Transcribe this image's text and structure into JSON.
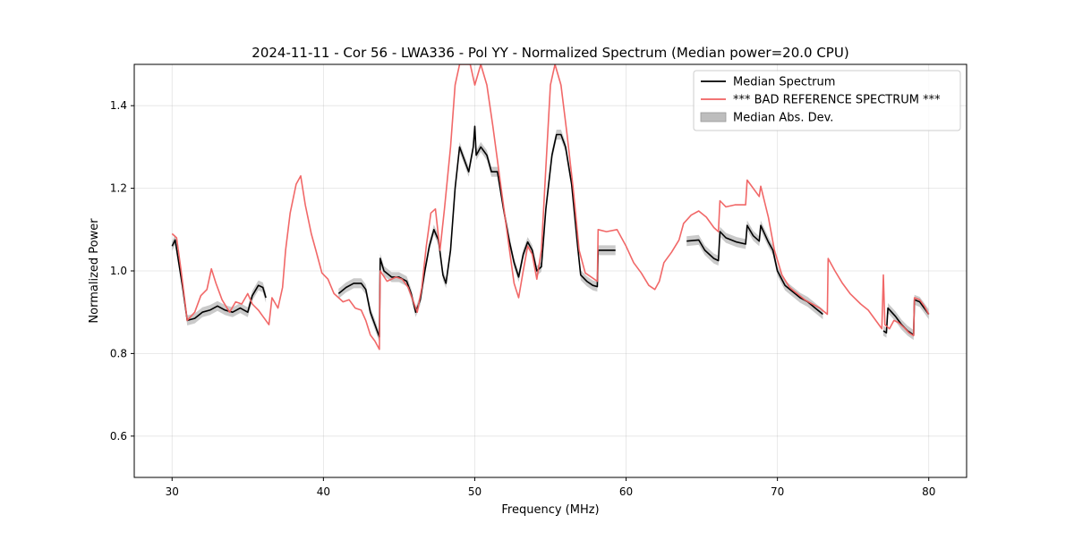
{
  "chart_data": {
    "type": "line",
    "title": "2024-11-11 - Cor 56 - LWA336 - Pol YY - Normalized Spectrum (Median power=20.0 CPU)",
    "xlabel": "Frequency (MHz)",
    "ylabel": "Normalized Power",
    "xlim": [
      27.5,
      82.5
    ],
    "ylim": [
      0.5,
      1.5
    ],
    "xticks": [
      30,
      40,
      50,
      60,
      70,
      80
    ],
    "yticks": [
      0.6,
      0.8,
      1.0,
      1.2,
      1.4
    ],
    "xtick_labels": [
      "30",
      "40",
      "50",
      "60",
      "70",
      "80"
    ],
    "ytick_labels": [
      "0.6",
      "0.8",
      "1.0",
      "1.2",
      "1.4"
    ],
    "grid": true,
    "legend_position": "top-right",
    "colors": {
      "median": "#000000",
      "reference": "#f06060",
      "band": "#bdbdbd"
    },
    "legend": [
      {
        "label": "Median Spectrum",
        "kind": "line",
        "color": "#000000"
      },
      {
        "label": "*** BAD REFERENCE SPECTRUM ***",
        "kind": "line",
        "color": "#f06060"
      },
      {
        "label": "Median Abs. Dev.",
        "kind": "patch",
        "color": "#bdbdbd"
      }
    ],
    "series": [
      {
        "name": "Median Spectrum",
        "band_halfwidth": 0.012,
        "segments": [
          [
            [
              30.0,
              1.06
            ],
            [
              30.2,
              1.075
            ],
            [
              30.4,
              1.03
            ],
            [
              30.7,
              0.96
            ],
            [
              31.0,
              0.88
            ],
            [
              31.5,
              0.885
            ],
            [
              32.0,
              0.9
            ],
            [
              32.5,
              0.905
            ],
            [
              33.0,
              0.915
            ],
            [
              33.5,
              0.905
            ],
            [
              34.0,
              0.9
            ],
            [
              34.5,
              0.91
            ],
            [
              35.0,
              0.9
            ],
            [
              35.3,
              0.94
            ],
            [
              35.7,
              0.965
            ],
            [
              36.0,
              0.96
            ],
            [
              36.2,
              0.935
            ]
          ],
          [
            [
              41.0,
              0.945
            ],
            [
              41.5,
              0.96
            ],
            [
              42.0,
              0.97
            ],
            [
              42.5,
              0.97
            ],
            [
              42.8,
              0.955
            ],
            [
              43.1,
              0.9
            ],
            [
              43.4,
              0.87
            ],
            [
              43.7,
              0.84
            ],
            [
              43.75,
              1.03
            ],
            [
              44.0,
              1.0
            ],
            [
              44.5,
              0.985
            ],
            [
              45.0,
              0.985
            ],
            [
              45.5,
              0.975
            ],
            [
              45.8,
              0.945
            ],
            [
              46.1,
              0.9
            ],
            [
              46.4,
              0.93
            ],
            [
              46.7,
              1.0
            ],
            [
              47.0,
              1.06
            ],
            [
              47.3,
              1.1
            ],
            [
              47.6,
              1.075
            ],
            [
              47.9,
              0.99
            ],
            [
              48.1,
              0.97
            ],
            [
              48.4,
              1.05
            ],
            [
              48.7,
              1.2
            ],
            [
              49.0,
              1.3
            ],
            [
              49.3,
              1.27
            ],
            [
              49.6,
              1.24
            ],
            [
              49.9,
              1.3
            ],
            [
              50.0,
              1.35
            ],
            [
              50.1,
              1.28
            ],
            [
              50.4,
              1.3
            ],
            [
              50.8,
              1.28
            ],
            [
              51.1,
              1.24
            ],
            [
              51.5,
              1.24
            ],
            [
              51.9,
              1.15
            ],
            [
              52.3,
              1.07
            ],
            [
              52.6,
              1.02
            ],
            [
              52.9,
              0.985
            ],
            [
              53.2,
              1.04
            ],
            [
              53.5,
              1.07
            ],
            [
              53.8,
              1.05
            ],
            [
              54.1,
              1.0
            ],
            [
              54.4,
              1.01
            ],
            [
              54.7,
              1.15
            ],
            [
              55.1,
              1.28
            ],
            [
              55.4,
              1.33
            ],
            [
              55.7,
              1.33
            ],
            [
              56.0,
              1.3
            ],
            [
              56.4,
              1.21
            ],
            [
              56.8,
              1.06
            ],
            [
              57.0,
              0.99
            ],
            [
              57.4,
              0.975
            ],
            [
              57.8,
              0.965
            ],
            [
              58.1,
              0.962
            ],
            [
              58.15,
              1.05
            ],
            [
              58.7,
              1.05
            ],
            [
              59.3,
              1.05
            ]
          ],
          [
            [
              64.0,
              1.072
            ],
            [
              64.8,
              1.075
            ],
            [
              65.2,
              1.05
            ],
            [
              65.8,
              1.03
            ],
            [
              66.1,
              1.025
            ],
            [
              66.2,
              1.095
            ],
            [
              66.6,
              1.08
            ],
            [
              67.3,
              1.07
            ],
            [
              67.9,
              1.065
            ],
            [
              68.0,
              1.11
            ],
            [
              68.4,
              1.085
            ],
            [
              68.8,
              1.072
            ],
            [
              68.9,
              1.11
            ],
            [
              69.4,
              1.07
            ],
            [
              69.7,
              1.05
            ],
            [
              70.0,
              1.0
            ],
            [
              70.5,
              0.965
            ],
            [
              71.0,
              0.95
            ],
            [
              71.5,
              0.935
            ],
            [
              72.0,
              0.925
            ],
            [
              72.5,
              0.91
            ],
            [
              73.0,
              0.895
            ]
          ],
          [
            [
              77.0,
              0.855
            ],
            [
              77.2,
              0.85
            ],
            [
              77.3,
              0.91
            ],
            [
              77.8,
              0.89
            ],
            [
              78.2,
              0.87
            ],
            [
              78.6,
              0.855
            ],
            [
              79.0,
              0.845
            ],
            [
              79.05,
              0.93
            ],
            [
              79.4,
              0.925
            ],
            [
              79.7,
              0.91
            ],
            [
              80.0,
              0.895
            ]
          ]
        ]
      },
      {
        "name": "*** BAD REFERENCE SPECTRUM ***",
        "segments": [
          [
            [
              30.0,
              1.09
            ],
            [
              30.3,
              1.08
            ],
            [
              30.6,
              1.0
            ],
            [
              31.0,
              0.88
            ],
            [
              31.5,
              0.9
            ],
            [
              31.9,
              0.94
            ],
            [
              32.3,
              0.955
            ],
            [
              32.6,
              1.005
            ],
            [
              32.9,
              0.97
            ],
            [
              33.3,
              0.93
            ],
            [
              33.8,
              0.9
            ],
            [
              34.2,
              0.925
            ],
            [
              34.6,
              0.92
            ],
            [
              35.0,
              0.945
            ],
            [
              35.3,
              0.92
            ],
            [
              35.7,
              0.905
            ],
            [
              36.0,
              0.89
            ],
            [
              36.4,
              0.87
            ],
            [
              36.6,
              0.935
            ],
            [
              37.0,
              0.91
            ],
            [
              37.3,
              0.96
            ],
            [
              37.5,
              1.05
            ],
            [
              37.8,
              1.14
            ],
            [
              38.2,
              1.21
            ],
            [
              38.5,
              1.23
            ],
            [
              38.8,
              1.16
            ],
            [
              39.2,
              1.09
            ],
            [
              39.5,
              1.05
            ],
            [
              39.9,
              0.995
            ],
            [
              40.3,
              0.98
            ],
            [
              40.7,
              0.945
            ],
            [
              41.0,
              0.935
            ],
            [
              41.3,
              0.925
            ],
            [
              41.7,
              0.93
            ],
            [
              42.1,
              0.91
            ],
            [
              42.5,
              0.905
            ],
            [
              42.8,
              0.88
            ],
            [
              43.1,
              0.845
            ],
            [
              43.4,
              0.83
            ],
            [
              43.7,
              0.81
            ],
            [
              43.75,
              1.0
            ],
            [
              44.2,
              0.975
            ],
            [
              44.8,
              0.985
            ],
            [
              45.2,
              0.98
            ],
            [
              45.6,
              0.96
            ],
            [
              45.9,
              0.93
            ],
            [
              46.2,
              0.9
            ],
            [
              46.5,
              0.96
            ],
            [
              46.8,
              1.06
            ],
            [
              47.1,
              1.14
            ],
            [
              47.4,
              1.15
            ],
            [
              47.7,
              1.05
            ],
            [
              48.0,
              1.15
            ],
            [
              48.4,
              1.3
            ],
            [
              48.7,
              1.45
            ],
            [
              49.0,
              1.5
            ],
            [
              49.3,
              1.5
            ],
            [
              49.7,
              1.5
            ],
            [
              50.0,
              1.45
            ],
            [
              50.4,
              1.5
            ],
            [
              50.8,
              1.45
            ],
            [
              51.2,
              1.35
            ],
            [
              51.6,
              1.24
            ],
            [
              52.0,
              1.13
            ],
            [
              52.3,
              1.05
            ],
            [
              52.6,
              0.97
            ],
            [
              52.9,
              0.935
            ],
            [
              53.2,
              1.0
            ],
            [
              53.5,
              1.06
            ],
            [
              53.8,
              1.04
            ],
            [
              54.1,
              0.98
            ],
            [
              54.4,
              1.05
            ],
            [
              54.7,
              1.25
            ],
            [
              55.0,
              1.45
            ],
            [
              55.3,
              1.5
            ],
            [
              55.7,
              1.45
            ],
            [
              56.1,
              1.33
            ],
            [
              56.5,
              1.2
            ],
            [
              56.9,
              1.05
            ],
            [
              57.3,
              0.995
            ],
            [
              57.7,
              0.985
            ],
            [
              58.1,
              0.975
            ],
            [
              58.15,
              1.1
            ],
            [
              58.7,
              1.095
            ],
            [
              59.4,
              1.1
            ],
            [
              60.0,
              1.06
            ],
            [
              60.5,
              1.02
            ],
            [
              61.0,
              0.995
            ],
            [
              61.5,
              0.965
            ],
            [
              61.9,
              0.955
            ],
            [
              62.2,
              0.975
            ],
            [
              62.5,
              1.02
            ],
            [
              63.0,
              1.045
            ],
            [
              63.5,
              1.075
            ],
            [
              63.8,
              1.115
            ],
            [
              64.3,
              1.135
            ],
            [
              64.8,
              1.145
            ],
            [
              65.3,
              1.13
            ],
            [
              65.8,
              1.105
            ],
            [
              66.1,
              1.095
            ],
            [
              66.2,
              1.17
            ],
            [
              66.6,
              1.155
            ],
            [
              67.2,
              1.16
            ],
            [
              67.9,
              1.16
            ],
            [
              68.0,
              1.22
            ],
            [
              68.4,
              1.2
            ],
            [
              68.8,
              1.18
            ],
            [
              68.9,
              1.205
            ],
            [
              69.4,
              1.13
            ],
            [
              69.8,
              1.05
            ],
            [
              70.3,
              0.99
            ],
            [
              70.8,
              0.96
            ],
            [
              71.3,
              0.945
            ],
            [
              71.8,
              0.93
            ],
            [
              72.3,
              0.92
            ],
            [
              72.8,
              0.91
            ],
            [
              73.3,
              0.895
            ],
            [
              73.35,
              1.03
            ],
            [
              73.8,
              1.0
            ],
            [
              74.3,
              0.97
            ],
            [
              74.8,
              0.945
            ],
            [
              75.5,
              0.92
            ],
            [
              76.0,
              0.905
            ],
            [
              76.5,
              0.88
            ],
            [
              76.8,
              0.865
            ],
            [
              76.9,
              0.86
            ],
            [
              77.0,
              0.99
            ],
            [
              77.1,
              0.87
            ],
            [
              77.4,
              0.86
            ],
            [
              77.7,
              0.88
            ],
            [
              78.0,
              0.875
            ],
            [
              78.4,
              0.862
            ],
            [
              78.7,
              0.85
            ],
            [
              79.0,
              0.843
            ],
            [
              79.05,
              0.935
            ],
            [
              79.4,
              0.93
            ],
            [
              79.7,
              0.915
            ],
            [
              80.0,
              0.895
            ]
          ]
        ]
      }
    ]
  }
}
